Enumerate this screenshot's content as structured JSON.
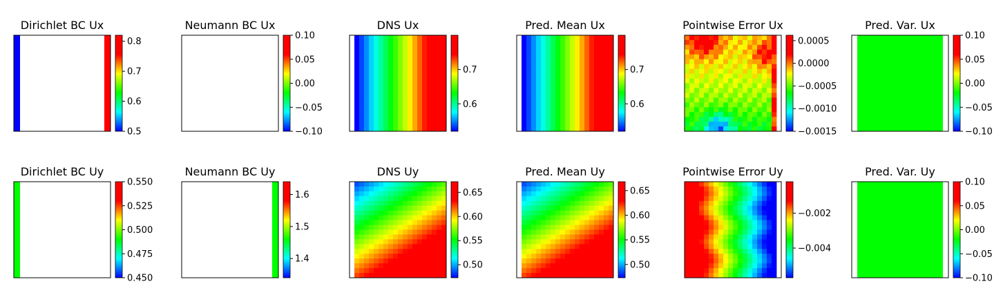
{
  "colormap": "hsv-jet",
  "chart_data": [
    {
      "type": "heatmap",
      "title": "Dirichlet BC Ux",
      "field": "dirichlet_ux",
      "colorbar": {
        "ticks": [
          0.5,
          0.6,
          0.7,
          0.8
        ],
        "range": [
          0.5,
          0.82
        ]
      }
    },
    {
      "type": "heatmap",
      "title": "Neumann BC Ux",
      "field": "empty",
      "colorbar": {
        "ticks": [
          -0.1,
          -0.05,
          0.0,
          0.05,
          0.1
        ],
        "range": [
          -0.1,
          0.1
        ]
      }
    },
    {
      "type": "heatmap",
      "title": "DNS Ux",
      "field": "ux",
      "colorbar": {
        "ticks": [
          0.6,
          0.7
        ],
        "range": [
          0.52,
          0.8
        ]
      }
    },
    {
      "type": "heatmap",
      "title": "Pred. Mean Ux",
      "field": "ux",
      "colorbar": {
        "ticks": [
          0.6,
          0.7
        ],
        "range": [
          0.52,
          0.8
        ]
      }
    },
    {
      "type": "heatmap",
      "title": "Pointwise Error Ux",
      "field": "err_ux",
      "colorbar": {
        "ticks": [
          -0.0015,
          -0.001,
          -0.0005,
          0.0,
          0.0005
        ],
        "range": [
          -0.0015,
          0.00062
        ]
      }
    },
    {
      "type": "heatmap",
      "title": "Pred. Var. Ux",
      "field": "const",
      "colorbar": {
        "ticks": [
          -0.1,
          -0.05,
          0.0,
          0.05,
          0.1
        ],
        "range": [
          -0.1,
          0.1
        ]
      }
    },
    {
      "type": "heatmap",
      "title": "Dirichlet BC Uy",
      "field": "dirichlet_uy",
      "colorbar": {
        "ticks": [
          0.45,
          0.475,
          0.5,
          0.525,
          0.55
        ],
        "range": [
          0.45,
          0.55
        ]
      }
    },
    {
      "type": "heatmap",
      "title": "Neumann BC Uy",
      "field": "neumann_uy",
      "colorbar": {
        "ticks": [
          1.4,
          1.5,
          1.6
        ],
        "range": [
          1.34,
          1.64
        ]
      }
    },
    {
      "type": "heatmap",
      "title": "DNS Uy",
      "field": "uy",
      "colorbar": {
        "ticks": [
          0.5,
          0.55,
          0.6,
          0.65
        ],
        "range": [
          0.473,
          0.672
        ]
      }
    },
    {
      "type": "heatmap",
      "title": "Pred. Mean Uy",
      "field": "uy",
      "colorbar": {
        "ticks": [
          0.5,
          0.55,
          0.6,
          0.65
        ],
        "range": [
          0.473,
          0.668
        ]
      }
    },
    {
      "type": "heatmap",
      "title": "Pointwise Error Uy",
      "field": "err_uy",
      "colorbar": {
        "ticks": [
          -0.004,
          -0.002
        ],
        "range": [
          -0.0057,
          -0.0002
        ]
      }
    },
    {
      "type": "heatmap",
      "title": "Pred. Var. Uy",
      "field": "const",
      "colorbar": {
        "ticks": [
          -0.1,
          -0.05,
          0.0,
          0.05,
          0.1
        ],
        "range": [
          -0.1,
          0.1
        ]
      }
    }
  ],
  "tick_labels": [
    [
      "0.5",
      "0.6",
      "0.7",
      "0.8"
    ],
    [
      "−0.10",
      "−0.05",
      "0.00",
      "0.05",
      "0.10"
    ],
    [
      "0.6",
      "0.7"
    ],
    [
      "0.6",
      "0.7"
    ],
    [
      "−0.0015",
      "−0.0010",
      "−0.0005",
      "0.0000",
      "0.0005"
    ],
    [
      "−0.10",
      "−0.05",
      "0.00",
      "0.05",
      "0.10"
    ],
    [
      "0.450",
      "0.475",
      "0.500",
      "0.525",
      "0.550"
    ],
    [
      "1.4",
      "1.5",
      "1.6"
    ],
    [
      "0.50",
      "0.55",
      "0.60",
      "0.65"
    ],
    [
      "0.50",
      "0.55",
      "0.60",
      "0.65"
    ],
    [
      "−0.004",
      "−0.002"
    ],
    [
      "−0.10",
      "−0.05",
      "0.00",
      "0.05",
      "0.10"
    ]
  ]
}
